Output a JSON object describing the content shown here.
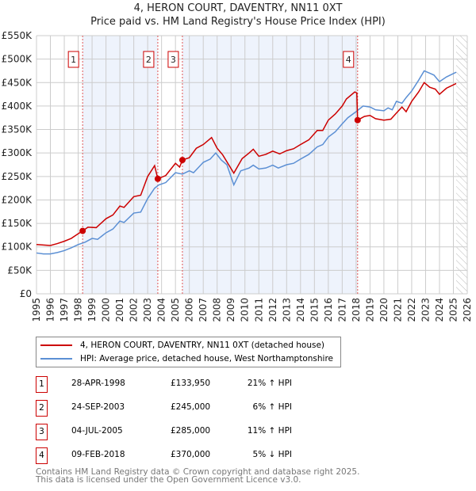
{
  "chart_data": {
    "type": "line",
    "title": "4, HERON COURT, DAVENTRY, NN11 0XT",
    "subtitle": "Price paid vs. HM Land Registry's House Price Index (HPI)",
    "xlim": [
      1995,
      2026
    ],
    "ylim": [
      0,
      550000
    ],
    "y_ticks": [
      {
        "v": 0,
        "label": "£0"
      },
      {
        "v": 50000,
        "label": "£50K"
      },
      {
        "v": 100000,
        "label": "£100K"
      },
      {
        "v": 150000,
        "label": "£150K"
      },
      {
        "v": 200000,
        "label": "£200K"
      },
      {
        "v": 250000,
        "label": "£250K"
      },
      {
        "v": 300000,
        "label": "£300K"
      },
      {
        "v": 350000,
        "label": "£350K"
      },
      {
        "v": 400000,
        "label": "£400K"
      },
      {
        "v": 450000,
        "label": "£450K"
      },
      {
        "v": 500000,
        "label": "£500K"
      },
      {
        "v": 550000,
        "label": "£550K"
      }
    ],
    "x_ticks": [
      "1995",
      "1996",
      "1997",
      "1998",
      "1999",
      "2000",
      "2001",
      "2002",
      "2003",
      "2004",
      "2005",
      "2006",
      "2007",
      "2008",
      "2009",
      "2010",
      "2011",
      "2012",
      "2013",
      "2014",
      "2015",
      "2016",
      "2017",
      "2018",
      "2019",
      "2020",
      "2021",
      "2022",
      "2023",
      "2024",
      "2025",
      "2026"
    ],
    "grid": true,
    "forecast_hatch_from": 2025.2,
    "shaded_ranges": [
      [
        1998.32,
        2003.73
      ],
      [
        2005.5,
        2018.11
      ]
    ],
    "series": [
      {
        "name": "4, HERON COURT, DAVENTRY, NN11 0XT (detached house)",
        "color": "#cc0000",
        "points": [
          [
            1995,
            105000
          ],
          [
            1995.5,
            104000
          ],
          [
            1996,
            103000
          ],
          [
            1996.5,
            107000
          ],
          [
            1997,
            112000
          ],
          [
            1997.5,
            118000
          ],
          [
            1998,
            128000
          ],
          [
            1998.32,
            133950
          ],
          [
            1998.7,
            142000
          ],
          [
            1999.3,
            141000
          ],
          [
            2000,
            160000
          ],
          [
            2000.5,
            168000
          ],
          [
            2001,
            187000
          ],
          [
            2001.3,
            184000
          ],
          [
            2002,
            207000
          ],
          [
            2002.5,
            210000
          ],
          [
            2003,
            250000
          ],
          [
            2003.5,
            273000
          ],
          [
            2003.73,
            245000
          ],
          [
            2004.3,
            252000
          ],
          [
            2005,
            278000
          ],
          [
            2005.3,
            270000
          ],
          [
            2005.5,
            285000
          ],
          [
            2006,
            290000
          ],
          [
            2006.5,
            310000
          ],
          [
            2007,
            318000
          ],
          [
            2007.6,
            333000
          ],
          [
            2008,
            310000
          ],
          [
            2008.4,
            296000
          ],
          [
            2009.2,
            257000
          ],
          [
            2009.8,
            288000
          ],
          [
            2010.3,
            300000
          ],
          [
            2010.6,
            308000
          ],
          [
            2011,
            293000
          ],
          [
            2011.5,
            297000
          ],
          [
            2012,
            304000
          ],
          [
            2012.5,
            298000
          ],
          [
            2013,
            305000
          ],
          [
            2013.5,
            309000
          ],
          [
            2014,
            318000
          ],
          [
            2014.6,
            328000
          ],
          [
            2015.2,
            348000
          ],
          [
            2015.6,
            348000
          ],
          [
            2016,
            370000
          ],
          [
            2016.5,
            383000
          ],
          [
            2017,
            400000
          ],
          [
            2017.3,
            415000
          ],
          [
            2017.9,
            430000
          ],
          [
            2018.05,
            428000
          ],
          [
            2018.11,
            370000
          ],
          [
            2018.6,
            378000
          ],
          [
            2019,
            380000
          ],
          [
            2019.4,
            373000
          ],
          [
            2020,
            370000
          ],
          [
            2020.5,
            372000
          ],
          [
            2020.9,
            385000
          ],
          [
            2021.3,
            398000
          ],
          [
            2021.6,
            388000
          ],
          [
            2022,
            410000
          ],
          [
            2022.5,
            430000
          ],
          [
            2022.9,
            450000
          ],
          [
            2023.3,
            440000
          ],
          [
            2023.7,
            436000
          ],
          [
            2024,
            425000
          ],
          [
            2024.5,
            438000
          ],
          [
            2025.2,
            448000
          ]
        ]
      },
      {
        "name": "HPI: Average price, detached house, West Northamptonshire",
        "color": "#5b8fd4",
        "points": [
          [
            1995,
            87000
          ],
          [
            1995.5,
            85000
          ],
          [
            1996,
            85000
          ],
          [
            1996.5,
            88000
          ],
          [
            1997,
            92000
          ],
          [
            1997.5,
            98000
          ],
          [
            1998,
            105000
          ],
          [
            1998.5,
            110000
          ],
          [
            1999,
            118000
          ],
          [
            1999.4,
            116000
          ],
          [
            2000,
            130000
          ],
          [
            2000.5,
            138000
          ],
          [
            2001,
            155000
          ],
          [
            2001.3,
            152000
          ],
          [
            2002,
            172000
          ],
          [
            2002.5,
            174000
          ],
          [
            2003,
            203000
          ],
          [
            2003.5,
            225000
          ],
          [
            2003.8,
            232000
          ],
          [
            2004.3,
            237000
          ],
          [
            2005,
            258000
          ],
          [
            2005.5,
            255000
          ],
          [
            2006,
            262000
          ],
          [
            2006.3,
            258000
          ],
          [
            2007,
            280000
          ],
          [
            2007.5,
            287000
          ],
          [
            2007.9,
            300000
          ],
          [
            2008.3,
            285000
          ],
          [
            2008.7,
            275000
          ],
          [
            2009.2,
            232000
          ],
          [
            2009.7,
            262000
          ],
          [
            2010.3,
            268000
          ],
          [
            2010.6,
            274000
          ],
          [
            2011,
            266000
          ],
          [
            2011.5,
            268000
          ],
          [
            2012,
            274000
          ],
          [
            2012.4,
            268000
          ],
          [
            2013,
            275000
          ],
          [
            2013.5,
            278000
          ],
          [
            2014,
            287000
          ],
          [
            2014.6,
            297000
          ],
          [
            2015.2,
            313000
          ],
          [
            2015.6,
            318000
          ],
          [
            2016,
            334000
          ],
          [
            2016.5,
            345000
          ],
          [
            2017,
            362000
          ],
          [
            2017.4,
            375000
          ],
          [
            2018,
            388000
          ],
          [
            2018.5,
            400000
          ],
          [
            2019,
            398000
          ],
          [
            2019.4,
            392000
          ],
          [
            2020,
            390000
          ],
          [
            2020.3,
            396000
          ],
          [
            2020.6,
            392000
          ],
          [
            2020.9,
            410000
          ],
          [
            2021.3,
            406000
          ],
          [
            2021.6,
            418000
          ],
          [
            2022,
            432000
          ],
          [
            2022.5,
            455000
          ],
          [
            2022.9,
            475000
          ],
          [
            2023.3,
            470000
          ],
          [
            2023.6,
            466000
          ],
          [
            2024,
            452000
          ],
          [
            2024.5,
            462000
          ],
          [
            2025.2,
            472000
          ]
        ]
      }
    ],
    "sales": [
      {
        "n": "1",
        "x": 1998.32,
        "y": 133950
      },
      {
        "n": "2",
        "x": 2003.73,
        "y": 245000
      },
      {
        "n": "3",
        "x": 2005.5,
        "y": 285000
      },
      {
        "n": "4",
        "x": 2018.11,
        "y": 370000
      }
    ]
  },
  "legend": {
    "property": "4, HERON COURT, DAVENTRY, NN11 0XT (detached house)",
    "hpi": "HPI: Average price, detached house, West Northamptonshire"
  },
  "transactions": [
    {
      "n": "1",
      "date": "28-APR-1998",
      "price": "£133,950",
      "hpi": "21% ↑ HPI"
    },
    {
      "n": "2",
      "date": "24-SEP-2003",
      "price": "£245,000",
      "hpi": "6% ↑ HPI"
    },
    {
      "n": "3",
      "date": "04-JUL-2005",
      "price": "£285,000",
      "hpi": "11% ↑ HPI"
    },
    {
      "n": "4",
      "date": "09-FEB-2018",
      "price": "£370,000",
      "hpi": "5% ↓ HPI"
    }
  ],
  "footer": {
    "line1": "Contains HM Land Registry data © Crown copyright and database right 2025.",
    "line2": "This data is licensed under the Open Government Licence v3.0."
  }
}
